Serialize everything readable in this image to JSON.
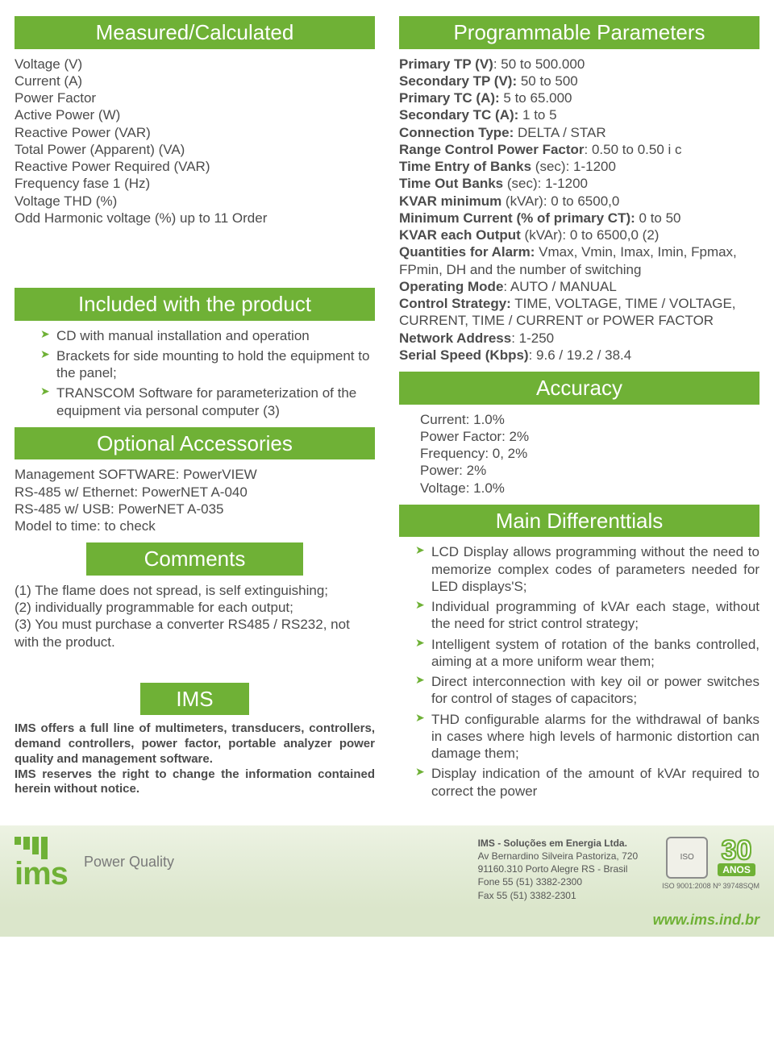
{
  "colors": {
    "accent": "#6fb136",
    "text": "#4b4b4b",
    "footer_bg_top": "#edf3e3",
    "footer_bg_bottom": "#dbe6cb"
  },
  "left": {
    "measured": {
      "title": "Measured/Calculated",
      "items": [
        "Voltage (V)",
        "Current (A)",
        "Power Factor",
        "Active Power (W)",
        "Reactive Power (VAR)",
        "Total Power (Apparent) (VA)",
        "Reactive Power Required (VAR)",
        "Frequency  fase 1 (Hz)",
        "Voltage THD (%)",
        "Odd Harmonic voltage (%) up to 11 Order"
      ]
    },
    "included": {
      "title": "Included with the product",
      "items": [
        "CD with manual installation and operation",
        "Brackets for side mounting to hold the equipment to the panel;",
        "TRANSCOM Software for parameterization of the equipment via personal computer (3)"
      ]
    },
    "optional": {
      "title": "Optional Accessories",
      "items": [
        "Management SOFTWARE:  PowerVIEW",
        "RS-485 w/ Ethernet: PowerNET A-040",
        "RS-485 w/ USB: PowerNET A-035",
        "Model to time: to check"
      ]
    },
    "comments": {
      "title": "Comments",
      "items": [
        "(1) The flame does not spread, is self extinguishing;",
        "(2) individually programmable for each output;",
        "(3) You must purchase a converter RS485 / RS232, not with the product."
      ]
    },
    "ims": {
      "title": "IMS",
      "p1": "IMS offers a full line of multimeters, transducers, controllers, demand controllers, power factor, portable analyzer power quality and management software.",
      "p2": "IMS reserves the right to change the information contained herein without notice."
    }
  },
  "right": {
    "prog": {
      "title": "Programmable Parameters",
      "lines": [
        {
          "b": "Primary TP (V)",
          "v": ": 50 to 500.000"
        },
        {
          "b": "Secondary TP (V):",
          "v": " 50 to 500"
        },
        {
          "b": "Primary TC (A):",
          "v": " 5 to 65.000"
        },
        {
          "b": "Secondary TC (A):",
          "v": " 1 to 5"
        },
        {
          "b": "Connection Type:",
          "v": " DELTA / STAR"
        },
        {
          "b": "Range Control Power Factor",
          "v": ": 0.50 to 0.50 i c"
        },
        {
          "b": "Time Entry of Banks",
          "v": " (sec): 1-1200"
        },
        {
          "b": "Time Out Banks",
          "v": " (sec): 1-1200"
        },
        {
          "b": "KVAR minimum",
          "v": " (kVAr): 0 to 6500,0"
        },
        {
          "b": "Minimum Current (% of primary CT):",
          "v": " 0 to 50"
        },
        {
          "b": "KVAR each Output",
          "v": " (kVAr): 0 to 6500,0 (2)"
        },
        {
          "b": "Quantities for Alarm:",
          "v": " Vmax, Vmin, Imax, Imin, Fpmax,  FPmin, DH and the number of switching"
        },
        {
          "b": "Operating Mode",
          "v": ": AUTO / MANUAL"
        },
        {
          "b": "Control Strategy:",
          "v": " TIME, VOLTAGE, TIME / VOLTAGE,"
        },
        {
          "b": "",
          "v": "CURRENT, TIME / CURRENT or POWER FACTOR"
        },
        {
          "b": "Network Address",
          "v": ": 1-250"
        },
        {
          "b": "Serial Speed (Kbps)",
          "v": ": 9.6 / 19.2 / 38.4"
        }
      ]
    },
    "accuracy": {
      "title": "Accuracy",
      "items": [
        "Current: 1.0%",
        "Power Factor: 2%",
        "Frequency: 0, 2%",
        "Power: 2%",
        "Voltage: 1.0%"
      ]
    },
    "diff": {
      "title": "Main Differenttials",
      "items": [
        "LCD Display allows programming without the need to memorize complex codes of parameters needed for LED displays'S;",
        "Individual programming of kVAr each stage, without the need for strict control strategy;",
        "Intelligent system of rotation of the banks controlled, aiming at a more uniform wear them;",
        "Direct interconnection with key oil or power switches for control of stages of capacitors;",
        "THD configurable alarms for the withdrawal of banks in cases where high levels of harmonic distortion can damage them;",
        "Display indication of the amount of kVAr required to correct the power"
      ]
    }
  },
  "footer": {
    "brand": "ims",
    "tagline": "Power Quality",
    "company": "IMS - Soluções em Energia Ltda.",
    "addr1": "Av Bernardino Silveira Pastoriza, 720",
    "addr2": "91160.310  Porto Alegre  RS - Brasil",
    "phone": "Fone  55 (51) 3382-2300",
    "fax": "Fax  55 (51) 3382-2301",
    "iso": "ISO 9001:2008 Nº 39748SQM",
    "anos_num": "30",
    "anos_label": "ANOS",
    "site": "www.ims.ind.br"
  }
}
